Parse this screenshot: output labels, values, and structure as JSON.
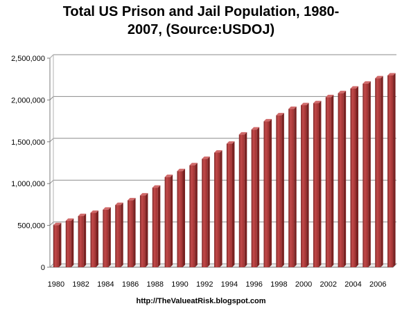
{
  "chart_data": {
    "type": "bar",
    "title_line1": "Total US Prison and Jail Population, 1980-",
    "title_line2": "2007, (Source:USDOJ)",
    "categories": [
      "1980",
      "1981",
      "1982",
      "1983",
      "1984",
      "1985",
      "1986",
      "1987",
      "1988",
      "1989",
      "1990",
      "1991",
      "1992",
      "1993",
      "1994",
      "1995",
      "1996",
      "1997",
      "1998",
      "1999",
      "2000",
      "2001",
      "2002",
      "2003",
      "2004",
      "2005",
      "2006",
      "2007"
    ],
    "x_tick_labels": [
      "1980",
      "1982",
      "1984",
      "1986",
      "1988",
      "1990",
      "1992",
      "1994",
      "1996",
      "1998",
      "2000",
      "2002",
      "2004",
      "2006"
    ],
    "values": [
      503000,
      555000,
      612000,
      650000,
      688000,
      744000,
      800000,
      858000,
      951000,
      1078000,
      1149000,
      1219000,
      1295000,
      1370000,
      1477000,
      1586000,
      1646000,
      1744000,
      1816000,
      1893000,
      1937000,
      1961000,
      2033000,
      2081000,
      2136000,
      2195000,
      2259000,
      2293000
    ],
    "y_tick_labels": [
      "0",
      "500,000",
      "1,000,000",
      "1,500,000",
      "2,000,000",
      "2,500,000"
    ],
    "ylim": [
      0,
      2500000
    ],
    "grid": true,
    "bar_color": "#B23A3A",
    "footer": "http://TheValueatRisk.blogspot.com"
  }
}
